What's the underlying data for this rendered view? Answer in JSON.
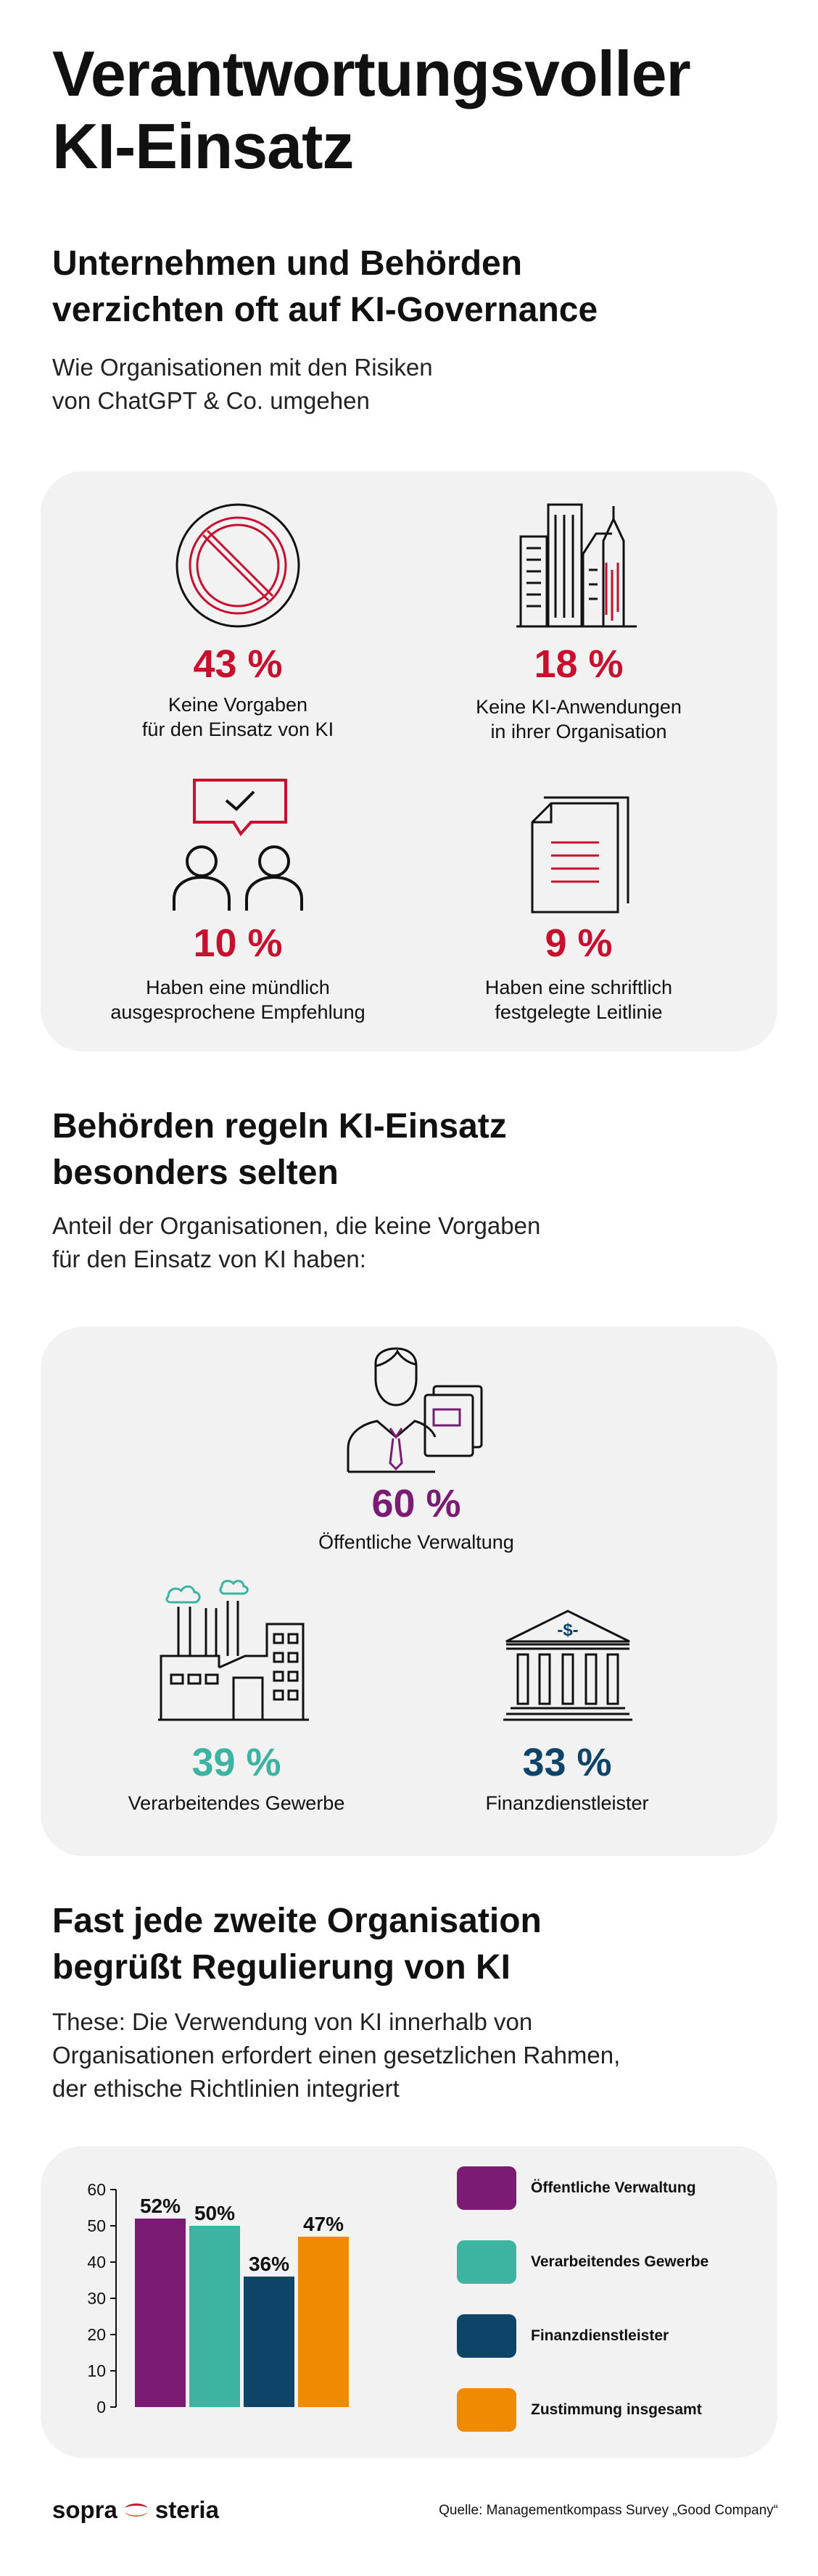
{
  "title_line1": "Verantwortungsvoller",
  "title_line2": "KI-Einsatz",
  "section1": {
    "heading_line1": "Unternehmen und Behörden",
    "heading_line2": "verzichten oft auf KI-Governance",
    "sub_line1": "Wie Organisationen mit den Risiken",
    "sub_line2": "von ChatGPT & Co. umgehen",
    "stats": [
      {
        "value": "43 %",
        "label_line1": "Keine Vorgaben",
        "label_line2": "für den Einsatz von KI",
        "icon": "prohibited-icon"
      },
      {
        "value": "18 %",
        "label_line1": "Keine KI-Anwendungen",
        "label_line2": "in ihrer Organisation",
        "icon": "buildings-icon"
      },
      {
        "value": "10 %",
        "label_line1": "Haben eine mündlich",
        "label_line2": "ausgesprochene Empfehlung",
        "icon": "people-chat-icon"
      },
      {
        "value": "9 %",
        "label_line1": "Haben eine schriftlich",
        "label_line2": "festgelegte Leitlinie",
        "icon": "document-icon"
      }
    ]
  },
  "section2": {
    "heading_line1": "Behörden regeln KI-Einsatz",
    "heading_line2": "besonders selten",
    "sub_line1": "Anteil der Organisationen, die keine Vorgaben",
    "sub_line2": "für den Einsatz von KI haben:",
    "stats": [
      {
        "value": "60 %",
        "label": "Öffentliche Verwaltung",
        "icon": "officer-icon"
      },
      {
        "value": "39 %",
        "label": "Verarbeitendes Gewerbe",
        "icon": "factory-icon"
      },
      {
        "value": "33 %",
        "label": "Finanzdienstleister",
        "icon": "bank-icon"
      }
    ]
  },
  "section3": {
    "heading_line1": "Fast jede zweite Organisation",
    "heading_line2": "begrüßt Regulierung von KI",
    "sub_line1": "These: Die Verwendung von KI innerhalb von",
    "sub_line2": "Organisationen erfordert einen gesetzlichen Rahmen,",
    "sub_line3": "der ethische Richtlinien integriert"
  },
  "colors": {
    "red": "#c8102e",
    "purple": "#7b1b73",
    "teal": "#3db3a1",
    "navy": "#0f4469",
    "orange": "#f08a00"
  },
  "chart_data": {
    "type": "bar",
    "categories": [
      "Öffentliche Verwaltung",
      "Verarbeitendes Gewerbe",
      "Finanzdienstleister",
      "Zustimmung insgesamt"
    ],
    "values": [
      52,
      50,
      36,
      47
    ],
    "value_labels": [
      "52%",
      "50%",
      "36%",
      "47%"
    ],
    "colors": [
      "#7b1b73",
      "#3db3a1",
      "#0f4469",
      "#f08a00"
    ],
    "ylim": [
      0,
      60
    ],
    "yticks": [
      "0",
      "10",
      "20",
      "30",
      "40",
      "50",
      "60"
    ],
    "legend_position": "right"
  },
  "footer": {
    "brand_left": "sopra",
    "brand_right": "steria",
    "source": "Quelle: Managementkompass Survey „Good Company“"
  }
}
